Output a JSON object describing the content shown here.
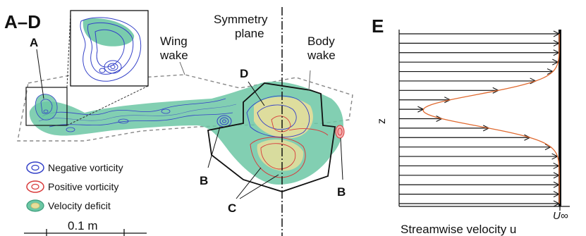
{
  "panel_left": {
    "title": "A–D",
    "wing_wake": [
      "Wing",
      "wake"
    ],
    "symmetry": [
      "Symmetry",
      "plane"
    ],
    "body_wake": [
      "Body",
      "wake"
    ],
    "marker_a": "A",
    "marker_b_left": "B",
    "marker_b_right": "B",
    "marker_c": "C",
    "marker_d": "D",
    "legend": [
      {
        "label": "Negative vorticity",
        "color": "#3340c8"
      },
      {
        "label": "Positive vorticity",
        "color": "#d83a3a"
      },
      {
        "label": "Velocity deficit",
        "color": "#6cc7a4"
      }
    ],
    "scale_label": "0.1 m"
  },
  "panel_right": {
    "title": "E",
    "y_label": "z",
    "x_label": "Streamwise velocity u",
    "x_tick": "U∞"
  },
  "colors": {
    "deficit": "#6cc7a4",
    "deficit_core": "#e8de9a",
    "negative": "#3340c8",
    "positive": "#d83a3a",
    "profile": "#e06a30"
  }
}
